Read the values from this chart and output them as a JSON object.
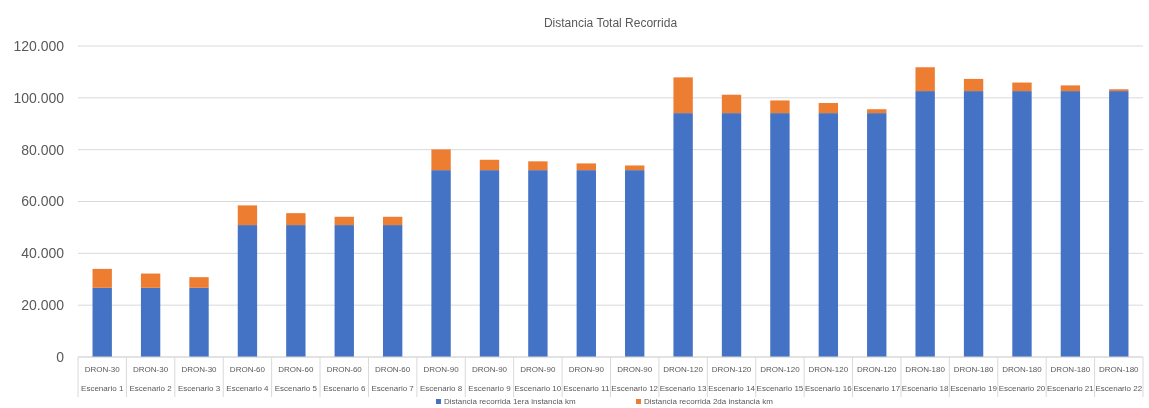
{
  "chart_data": {
    "type": "bar",
    "stacked": true,
    "title": "Distancia Total Recorrida",
    "categories": [
      "DRON-30\nEscenario 1",
      "DRON-30\nEscenario 2",
      "DRON-30\nEscenario 3",
      "DRON-60\nEscenario 4",
      "DRON-60\nEscenario 5",
      "DRON-60\nEscenario 6",
      "DRON-60\nEscenario 7",
      "DRON-90\nEscenario 8",
      "DRON-90\nEscenario 9",
      "DRON-90\nEscenario 10",
      "DRON-90\nEscenario 11",
      "DRON-90\nEscenario 12",
      "DRON-120\nEscenario 13",
      "DRON-120\nEscenario 14",
      "DRON-120\nEscenario 15",
      "DRON-120\nEscenario 16",
      "DRON-120\nEscenario 17",
      "DRON-180\nEscenario 18",
      "DRON-180\nEscenario 19",
      "DRON-180\nEscenario 20",
      "DRON-180\nEscenario 21",
      "DRON-180\nEscenario 22"
    ],
    "series": [
      {
        "name": "Distancia recorrida 1era instancia km",
        "color": "#4472c4",
        "values": [
          26700,
          26700,
          26700,
          50900,
          50900,
          50900,
          50900,
          72100,
          72100,
          72100,
          72100,
          72100,
          94100,
          94100,
          94100,
          94100,
          94100,
          102600,
          102600,
          102600,
          102600,
          102600
        ]
      },
      {
        "name": "Distancia recorrida 2da instancia km",
        "color": "#ed7d31",
        "values": [
          7300,
          5500,
          4100,
          7600,
          4600,
          3200,
          3200,
          8000,
          4000,
          3400,
          2600,
          1800,
          13800,
          7100,
          4900,
          3900,
          1500,
          9200,
          4700,
          3300,
          2200,
          700
        ]
      }
    ],
    "ylim": [
      0,
      120000
    ],
    "yticks": [
      {
        "value": 0,
        "label": "0"
      },
      {
        "value": 20000,
        "label": "20.000"
      },
      {
        "value": 40000,
        "label": "40.000"
      },
      {
        "value": 60000,
        "label": "60.000"
      },
      {
        "value": 80000,
        "label": "80.000"
      },
      {
        "value": 100000,
        "label": "100.000"
      },
      {
        "value": 120000,
        "label": "120.000"
      }
    ],
    "grid": "y",
    "legend": "bottom"
  }
}
